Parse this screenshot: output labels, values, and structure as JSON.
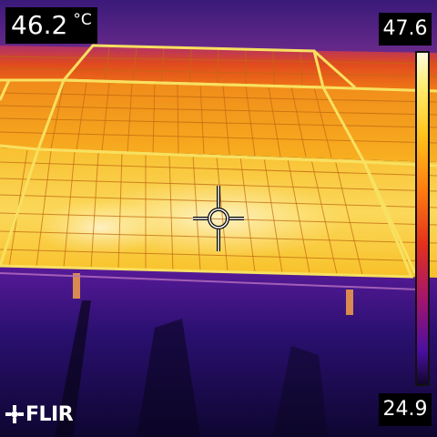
{
  "camera": {
    "spot_temperature": "46.2",
    "unit": "°C",
    "scale_max": "47.6",
    "scale_min": "24.9",
    "brand": "FLIR"
  },
  "palette": {
    "hot": "#fff3a0",
    "warm": "#ffb020",
    "mid": "#e04a1a",
    "cool": "#7a1a90",
    "cold": "#1a0a50"
  }
}
